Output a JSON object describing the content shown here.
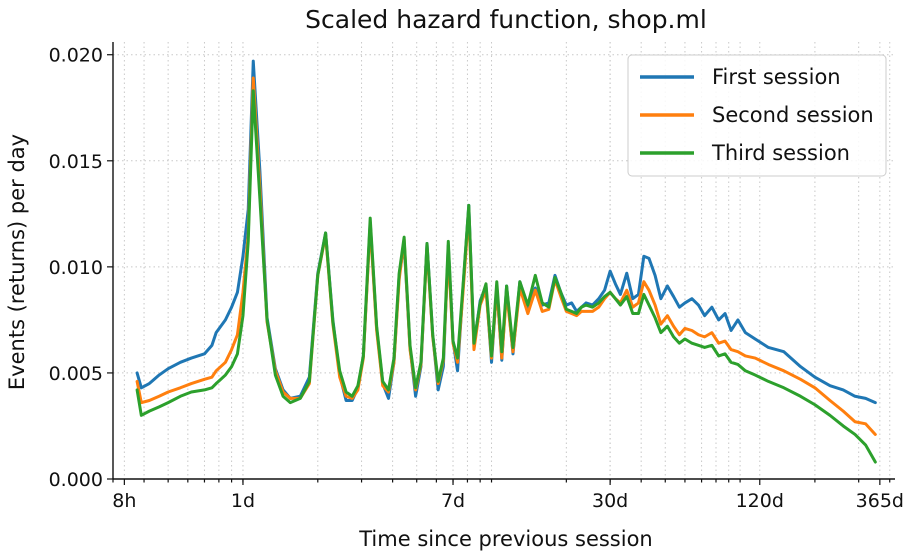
{
  "chart_data": {
    "type": "line",
    "title": "Scaled hazard function, shop.ml",
    "xlabel": "Time since previous session",
    "ylabel": "Events (returns) per day",
    "x_scale": "log",
    "x_unit": "days",
    "xlim": [
      0.3,
      420
    ],
    "ylim": [
      0,
      0.0206
    ],
    "x_ticks": [
      {
        "value": 0.3333,
        "label": "8h"
      },
      {
        "value": 1,
        "label": "1d"
      },
      {
        "value": 7,
        "label": "7d"
      },
      {
        "value": 30,
        "label": "30d"
      },
      {
        "value": 120,
        "label": "120d"
      },
      {
        "value": 365,
        "label": "365d"
      }
    ],
    "y_ticks": [
      {
        "value": 0,
        "label": "0.000"
      },
      {
        "value": 0.005,
        "label": "0.005"
      },
      {
        "value": 0.01,
        "label": "0.010"
      },
      {
        "value": 0.015,
        "label": "0.015"
      },
      {
        "value": 0.02,
        "label": "0.020"
      }
    ],
    "grid": true,
    "legend_position": "top-right",
    "series": [
      {
        "name": "First session",
        "color": "#1f77b4",
        "x": [
          0.375,
          0.39,
          0.42,
          0.46,
          0.5,
          0.56,
          0.62,
          0.7,
          0.75,
          0.78,
          0.85,
          0.9,
          0.95,
          1.0,
          1.05,
          1.1,
          1.17,
          1.25,
          1.35,
          1.45,
          1.55,
          1.7,
          1.85,
          2.0,
          2.15,
          2.3,
          2.45,
          2.6,
          2.75,
          2.9,
          3.05,
          3.25,
          3.45,
          3.65,
          3.85,
          4.05,
          4.25,
          4.45,
          4.7,
          4.95,
          5.2,
          5.5,
          5.8,
          6.1,
          6.4,
          6.7,
          7.0,
          7.3,
          7.7,
          8.1,
          8.5,
          9.0,
          9.5,
          10.0,
          10.5,
          11.0,
          11.5,
          12.2,
          13.0,
          14.0,
          15.0,
          16.0,
          17.0,
          18.0,
          19.0,
          20.0,
          21.0,
          22.0,
          23.0,
          24.0,
          25.5,
          27.0,
          28.5,
          30.0,
          31.5,
          33.0,
          35.0,
          37.0,
          39.0,
          41.0,
          43.0,
          45.5,
          48.0,
          51.0,
          54.0,
          57.0,
          60.0,
          64.0,
          68.0,
          72.0,
          77.0,
          82.0,
          87.0,
          92.0,
          98.0,
          105.0,
          115.0,
          130.0,
          150.0,
          175.0,
          200.0,
          230.0,
          260.0,
          290.0,
          320.0,
          350.0
        ],
        "y": [
          0.005,
          0.0043,
          0.0045,
          0.0049,
          0.0052,
          0.0055,
          0.0057,
          0.0059,
          0.0063,
          0.0069,
          0.0075,
          0.0081,
          0.0088,
          0.0105,
          0.0127,
          0.0197,
          0.0145,
          0.0076,
          0.0052,
          0.0042,
          0.0038,
          0.0039,
          0.0048,
          0.0097,
          0.0116,
          0.0075,
          0.0049,
          0.0037,
          0.0037,
          0.0043,
          0.0058,
          0.0121,
          0.0071,
          0.0045,
          0.0038,
          0.0055,
          0.0096,
          0.0111,
          0.0062,
          0.0039,
          0.0053,
          0.0111,
          0.0068,
          0.0042,
          0.0053,
          0.011,
          0.0065,
          0.0051,
          0.0092,
          0.0129,
          0.0063,
          0.0084,
          0.0091,
          0.0055,
          0.0091,
          0.0056,
          0.0091,
          0.0059,
          0.0093,
          0.0081,
          0.009,
          0.0082,
          0.0083,
          0.0096,
          0.0088,
          0.0082,
          0.0083,
          0.0079,
          0.0081,
          0.0083,
          0.0082,
          0.0085,
          0.0089,
          0.0098,
          0.0092,
          0.0087,
          0.0097,
          0.0085,
          0.0087,
          0.0105,
          0.0104,
          0.0096,
          0.0085,
          0.0091,
          0.0086,
          0.0081,
          0.0083,
          0.0085,
          0.0082,
          0.0077,
          0.0081,
          0.0075,
          0.0078,
          0.007,
          0.0075,
          0.0069,
          0.0066,
          0.0062,
          0.006,
          0.0053,
          0.0048,
          0.0044,
          0.0042,
          0.0039,
          0.0038,
          0.0036
        ]
      },
      {
        "name": "Second session",
        "color": "#ff7f0e",
        "x": [
          0.375,
          0.39,
          0.42,
          0.46,
          0.5,
          0.56,
          0.62,
          0.7,
          0.75,
          0.78,
          0.85,
          0.9,
          0.95,
          1.0,
          1.05,
          1.1,
          1.17,
          1.25,
          1.35,
          1.45,
          1.55,
          1.7,
          1.85,
          2.0,
          2.15,
          2.3,
          2.45,
          2.6,
          2.75,
          2.9,
          3.05,
          3.25,
          3.45,
          3.65,
          3.85,
          4.05,
          4.25,
          4.45,
          4.7,
          4.95,
          5.2,
          5.5,
          5.8,
          6.1,
          6.4,
          6.7,
          7.0,
          7.3,
          7.7,
          8.1,
          8.5,
          9.0,
          9.5,
          10.0,
          10.5,
          11.0,
          11.5,
          12.2,
          13.0,
          14.0,
          15.0,
          16.0,
          17.0,
          18.0,
          19.0,
          20.0,
          21.0,
          22.0,
          23.0,
          24.0,
          25.5,
          27.0,
          28.5,
          30.0,
          31.5,
          33.0,
          35.0,
          37.0,
          39.0,
          41.0,
          43.0,
          45.5,
          48.0,
          51.0,
          54.0,
          57.0,
          60.0,
          64.0,
          68.0,
          72.0,
          77.0,
          82.0,
          87.0,
          92.0,
          98.0,
          105.0,
          115.0,
          130.0,
          150.0,
          175.0,
          200.0,
          230.0,
          260.0,
          290.0,
          320.0,
          350.0
        ],
        "y": [
          0.0046,
          0.0036,
          0.0037,
          0.0039,
          0.0041,
          0.0043,
          0.0045,
          0.0047,
          0.0048,
          0.0051,
          0.0055,
          0.0061,
          0.0068,
          0.0088,
          0.0115,
          0.0189,
          0.0137,
          0.0074,
          0.0051,
          0.0041,
          0.0038,
          0.0038,
          0.0045,
          0.0096,
          0.0115,
          0.0073,
          0.0048,
          0.0039,
          0.0038,
          0.0042,
          0.0057,
          0.012,
          0.007,
          0.0044,
          0.0041,
          0.0055,
          0.0094,
          0.0113,
          0.0061,
          0.0042,
          0.0054,
          0.0109,
          0.0067,
          0.0045,
          0.0056,
          0.0107,
          0.0064,
          0.0055,
          0.009,
          0.0126,
          0.0061,
          0.0082,
          0.0089,
          0.0057,
          0.009,
          0.0057,
          0.0088,
          0.006,
          0.009,
          0.0078,
          0.0089,
          0.0079,
          0.008,
          0.0094,
          0.0086,
          0.0079,
          0.0078,
          0.0077,
          0.0079,
          0.0079,
          0.0079,
          0.0081,
          0.0085,
          0.0088,
          0.0085,
          0.0083,
          0.0089,
          0.0081,
          0.0083,
          0.0093,
          0.0089,
          0.0082,
          0.0073,
          0.0077,
          0.0072,
          0.0068,
          0.0071,
          0.007,
          0.0068,
          0.0067,
          0.0069,
          0.0064,
          0.0065,
          0.0061,
          0.006,
          0.0058,
          0.0057,
          0.0054,
          0.0051,
          0.0047,
          0.0043,
          0.0037,
          0.0032,
          0.0027,
          0.0026,
          0.0021
        ]
      },
      {
        "name": "Third session",
        "color": "#2ca02c",
        "x": [
          0.375,
          0.39,
          0.42,
          0.46,
          0.5,
          0.56,
          0.62,
          0.7,
          0.75,
          0.78,
          0.85,
          0.9,
          0.95,
          1.0,
          1.05,
          1.1,
          1.17,
          1.25,
          1.35,
          1.45,
          1.55,
          1.7,
          1.85,
          2.0,
          2.15,
          2.3,
          2.45,
          2.6,
          2.75,
          2.9,
          3.05,
          3.25,
          3.45,
          3.65,
          3.85,
          4.05,
          4.25,
          4.45,
          4.7,
          4.95,
          5.2,
          5.5,
          5.8,
          6.1,
          6.4,
          6.7,
          7.0,
          7.3,
          7.7,
          8.1,
          8.5,
          9.0,
          9.5,
          10.0,
          10.5,
          11.0,
          11.5,
          12.2,
          13.0,
          14.0,
          15.0,
          16.0,
          17.0,
          18.0,
          19.0,
          20.0,
          21.0,
          22.0,
          23.0,
          24.0,
          25.5,
          27.0,
          28.5,
          30.0,
          31.5,
          33.0,
          35.0,
          37.0,
          39.0,
          41.0,
          43.0,
          45.5,
          48.0,
          51.0,
          54.0,
          57.0,
          60.0,
          64.0,
          68.0,
          72.0,
          77.0,
          82.0,
          87.0,
          92.0,
          98.0,
          105.0,
          115.0,
          130.0,
          150.0,
          175.0,
          200.0,
          230.0,
          260.0,
          290.0,
          320.0,
          350.0
        ],
        "y": [
          0.0042,
          0.003,
          0.0032,
          0.0034,
          0.0036,
          0.0039,
          0.0041,
          0.0042,
          0.0043,
          0.0045,
          0.0049,
          0.0053,
          0.0059,
          0.0077,
          0.0112,
          0.0183,
          0.0132,
          0.0075,
          0.0049,
          0.0039,
          0.0036,
          0.0038,
          0.0046,
          0.0096,
          0.0116,
          0.0074,
          0.0051,
          0.0041,
          0.0039,
          0.0044,
          0.0058,
          0.0123,
          0.0072,
          0.0046,
          0.0042,
          0.0057,
          0.0097,
          0.0114,
          0.0063,
          0.0043,
          0.0055,
          0.0111,
          0.0068,
          0.0046,
          0.0057,
          0.0112,
          0.0065,
          0.0057,
          0.0093,
          0.0129,
          0.0064,
          0.0083,
          0.0092,
          0.0058,
          0.0093,
          0.006,
          0.0091,
          0.0062,
          0.0093,
          0.0082,
          0.0096,
          0.0083,
          0.0081,
          0.0095,
          0.0088,
          0.008,
          0.0079,
          0.0078,
          0.0081,
          0.0082,
          0.0081,
          0.0083,
          0.0086,
          0.0088,
          0.0085,
          0.0082,
          0.0086,
          0.0078,
          0.0078,
          0.0087,
          0.0082,
          0.0076,
          0.0069,
          0.0072,
          0.0067,
          0.0064,
          0.0066,
          0.0064,
          0.0063,
          0.0062,
          0.0063,
          0.0058,
          0.0059,
          0.0055,
          0.0054,
          0.0051,
          0.0049,
          0.0046,
          0.0043,
          0.0039,
          0.0035,
          0.003,
          0.0025,
          0.0021,
          0.0016,
          0.0008
        ]
      }
    ]
  }
}
